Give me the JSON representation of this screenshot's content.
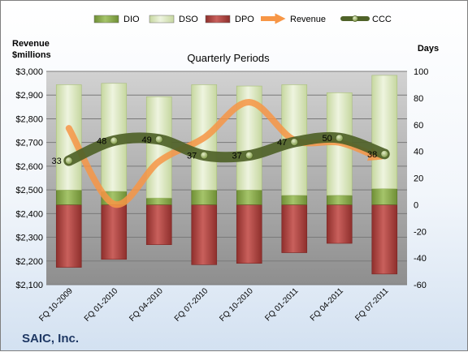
{
  "chart_data": {
    "type": "bar",
    "title": "Quarterly Periods",
    "company": "SAIC, Inc.",
    "y_left_label": [
      "Revenue",
      "$millions"
    ],
    "y_right_label": "Days",
    "y_left_range": [
      2100,
      3000
    ],
    "y_left_ticks": [
      "$2,100",
      "$2,200",
      "$2,300",
      "$2,400",
      "$2,500",
      "$2,600",
      "$2,700",
      "$2,800",
      "$2,900",
      "$3,000"
    ],
    "y_right_range": [
      -60,
      100
    ],
    "y_right_ticks": [
      "-60",
      "-40",
      "-20",
      "0",
      "20",
      "40",
      "60",
      "80",
      "100"
    ],
    "categories": [
      "FQ 10-2009",
      "FQ 01-2010",
      "FQ 04-2010",
      "FQ 07-2010",
      "FQ 10-2010",
      "FQ 01-2011",
      "FQ 04-2011",
      "FQ 07-2011"
    ],
    "series": [
      {
        "name": "DIO",
        "axis": "right",
        "kind": "stacked-bar",
        "color": "#8db04f",
        "values": [
          11,
          10,
          5,
          11,
          11,
          7,
          7,
          12
        ]
      },
      {
        "name": "DSO",
        "axis": "right",
        "kind": "stacked-bar",
        "color": "#d7e4bd",
        "values": [
          79,
          81,
          76,
          79,
          78,
          83,
          77,
          85
        ]
      },
      {
        "name": "DPO",
        "axis": "right",
        "kind": "negative-bar",
        "color": "#c0504d",
        "values": [
          -47,
          -41,
          -30,
          -45,
          -44,
          -36,
          -29,
          -52
        ]
      },
      {
        "name": "Revenue",
        "axis": "left",
        "kind": "line",
        "color": "#f79646",
        "values": [
          2760,
          2440,
          2620,
          2720,
          2870,
          2710,
          2700,
          2640
        ]
      },
      {
        "name": "CCC",
        "axis": "right",
        "kind": "line-markers",
        "color": "#4f6228",
        "values": [
          33,
          48,
          49,
          37,
          37,
          47,
          50,
          38
        ]
      }
    ],
    "data_labels": {
      "series": "CCC",
      "values": [
        "33",
        "48",
        "49",
        "37",
        "37",
        "47",
        "50",
        "38"
      ]
    },
    "legend": {
      "position": "top",
      "items": [
        "DIO",
        "DSO",
        "DPO",
        "Revenue",
        "CCC"
      ]
    },
    "grid": true
  }
}
